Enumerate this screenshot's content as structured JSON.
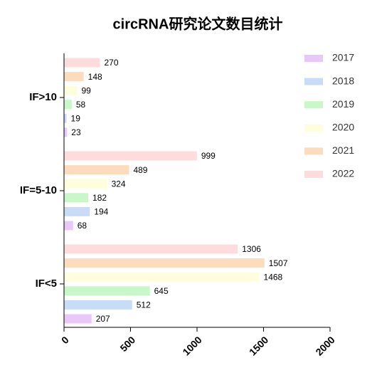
{
  "chart_data": {
    "type": "barh",
    "title": "circRNA研究论文数目统计",
    "categories": [
      "IF>10",
      "IF=5-10",
      "IF<5"
    ],
    "series": [
      {
        "name": "2017",
        "color": "#e8c8f8",
        "values": [
          23,
          68,
          207
        ]
      },
      {
        "name": "2018",
        "color": "#c8dcf8",
        "values": [
          19,
          194,
          512
        ]
      },
      {
        "name": "2019",
        "color": "#c8f8c8",
        "values": [
          58,
          182,
          645
        ]
      },
      {
        "name": "2020",
        "color": "#fffedc",
        "values": [
          99,
          324,
          1468
        ]
      },
      {
        "name": "2021",
        "color": "#fcdcbc",
        "values": [
          148,
          489,
          1507
        ]
      },
      {
        "name": "2022",
        "color": "#fcdcdc",
        "values": [
          270,
          999,
          1306
        ]
      }
    ],
    "xlim": [
      0,
      2000
    ],
    "xticks": [
      0,
      500,
      1000,
      1500,
      2000
    ],
    "legend": "top-right"
  }
}
